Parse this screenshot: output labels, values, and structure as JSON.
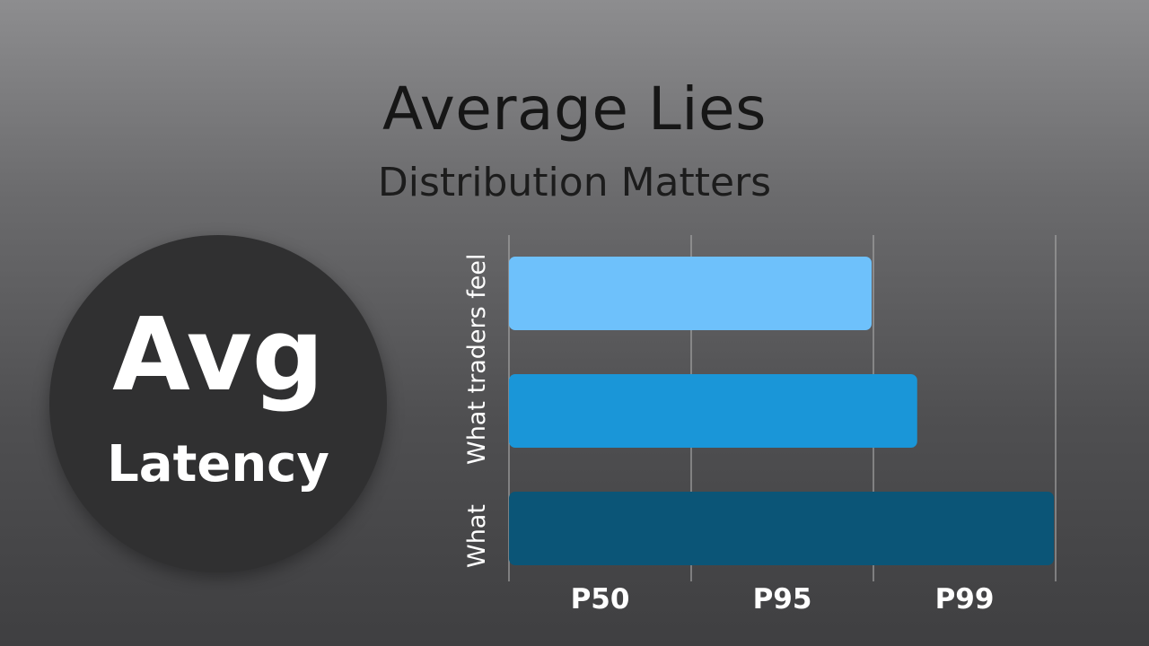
{
  "header": {
    "title": "Average Lies",
    "subtitle": "Distribution Matters"
  },
  "badge": {
    "main": "Avg",
    "sub": "Latency"
  },
  "colors": {
    "bar1": "#6ec1fb",
    "bar2": "#1a96d8",
    "bar3": "#0b5577",
    "grid": "#a6a6a6"
  },
  "chart_data": {
    "type": "bar",
    "orientation": "horizontal",
    "title": "Average Lies",
    "subtitle": "Distribution Matters",
    "x_ticks": [
      "P50",
      "P95",
      "P99"
    ],
    "xlim": [
      0,
      3
    ],
    "values": [
      2.0,
      2.25,
      3.0
    ],
    "y_labels": [
      "What traders feel",
      "What"
    ],
    "grid": true
  }
}
